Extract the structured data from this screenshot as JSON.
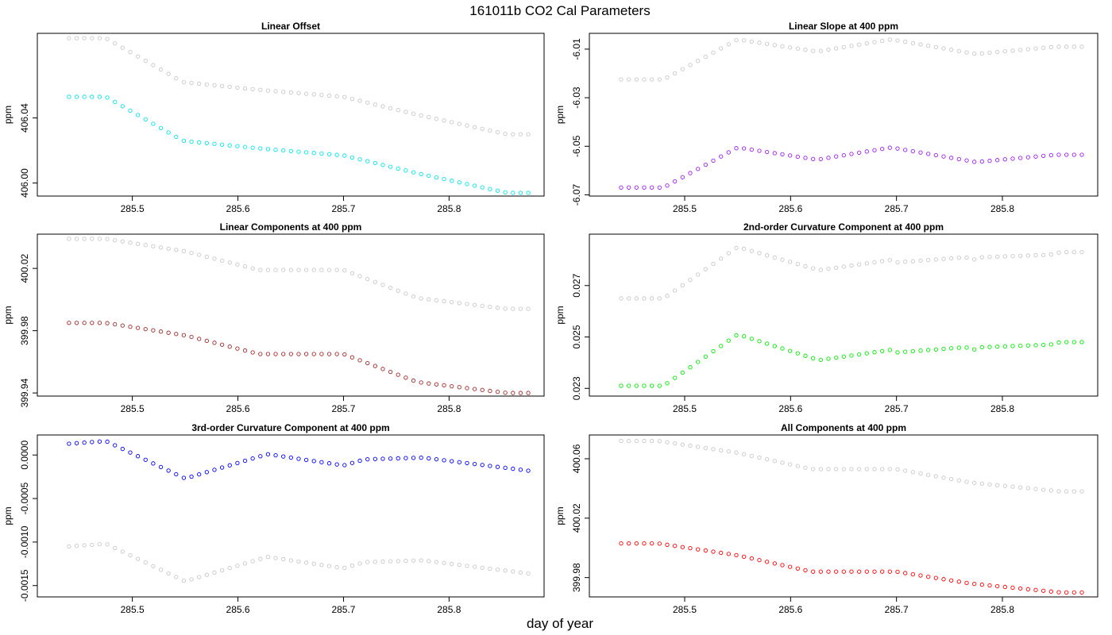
{
  "title": "161011b   CO2 Cal Parameters",
  "xlabel": "day of year",
  "chart_data": [
    {
      "type": "scatter",
      "title": "Linear Offset",
      "ylabel": "ppm",
      "xticks": [
        "285.5",
        "285.6",
        "285.7",
        "285.8"
      ],
      "yticks": [
        "406.00",
        "406.04"
      ],
      "xlim": [
        285.41,
        285.89
      ],
      "ylim": [
        405.992,
        406.092
      ],
      "colors": {
        "series": "#00e5ee",
        "reference": "#c8c8c8"
      },
      "series": [
        {
          "anchors": [
            [
              285.44,
              406.053
            ],
            [
              285.475,
              406.053
            ],
            [
              285.548,
              406.026
            ],
            [
              285.625,
              406.021
            ],
            [
              285.7,
              406.017
            ],
            [
              285.77,
              406.006
            ],
            [
              285.855,
              405.994
            ],
            [
              285.875,
              405.994
            ]
          ]
        },
        {
          "anchors": [
            [
              285.44,
              406.089
            ],
            [
              285.475,
              406.089
            ],
            [
              285.548,
              406.062
            ],
            [
              285.625,
              406.057
            ],
            [
              285.7,
              406.053
            ],
            [
              285.77,
              406.042
            ],
            [
              285.855,
              406.03
            ],
            [
              285.875,
              406.03
            ]
          ]
        }
      ]
    },
    {
      "type": "scatter",
      "title": "Linear Slope at 400 ppm",
      "ylabel": "ppm",
      "xticks": [
        "285.5",
        "285.6",
        "285.7",
        "285.8"
      ],
      "yticks": [
        "-6.07",
        "-6.05",
        "-6.03",
        "-6.01"
      ],
      "xlim": [
        285.41,
        285.89
      ],
      "ylim": [
        -6.0705,
        -6.0035
      ],
      "colors": {
        "series": "#a020f0",
        "reference": "#c8c8c8"
      },
      "series": [
        {
          "anchors": [
            [
              285.44,
              -6.067
            ],
            [
              285.48,
              -6.067
            ],
            [
              285.55,
              -6.0505
            ],
            [
              285.625,
              -6.0555
            ],
            [
              285.695,
              -6.0505
            ],
            [
              285.775,
              -6.0565
            ],
            [
              285.85,
              -6.0535
            ],
            [
              285.875,
              -6.0535
            ]
          ]
        },
        {
          "anchors": [
            [
              285.44,
              -6.0225
            ],
            [
              285.48,
              -6.0225
            ],
            [
              285.55,
              -6.006
            ],
            [
              285.625,
              -6.011
            ],
            [
              285.695,
              -6.006
            ],
            [
              285.775,
              -6.012
            ],
            [
              285.85,
              -6.009
            ],
            [
              285.875,
              -6.009
            ]
          ]
        }
      ]
    },
    {
      "type": "scatter",
      "title": "Linear Components at 400 ppm",
      "ylabel": "ppm",
      "xticks": [
        "285.5",
        "285.6",
        "285.7",
        "285.8"
      ],
      "yticks": [
        "399.94",
        "399.98",
        "400.02"
      ],
      "xlim": [
        285.41,
        285.89
      ],
      "ylim": [
        399.938,
        400.042
      ],
      "colors": {
        "series": "#a52a2a",
        "reference": "#c8c8c8"
      },
      "series": [
        {
          "anchors": [
            [
              285.44,
              399.985
            ],
            [
              285.475,
              399.985
            ],
            [
              285.55,
              399.977
            ],
            [
              285.62,
              399.965
            ],
            [
              285.7,
              399.965
            ],
            [
              285.77,
              399.947
            ],
            [
              285.855,
              399.94
            ],
            [
              285.875,
              399.94
            ]
          ]
        },
        {
          "anchors": [
            [
              285.44,
              400.039
            ],
            [
              285.475,
              400.039
            ],
            [
              285.55,
              400.031
            ],
            [
              285.62,
              400.019
            ],
            [
              285.7,
              400.019
            ],
            [
              285.77,
              400.001
            ],
            [
              285.855,
              399.994
            ],
            [
              285.875,
              399.994
            ]
          ]
        }
      ]
    },
    {
      "type": "scatter",
      "title": "2nd-order Curvature Component at 400 ppm",
      "ylabel": "ppm",
      "xticks": [
        "285.5",
        "285.6",
        "285.7",
        "285.8"
      ],
      "yticks": [
        "0.023",
        "0.025",
        "0.027"
      ],
      "xlim": [
        285.41,
        285.89
      ],
      "ylim": [
        0.0227,
        0.029
      ],
      "colors": {
        "series": "#00ee00",
        "reference": "#c8c8c8"
      },
      "series": [
        {
          "anchors": [
            [
              285.44,
              0.0231
            ],
            [
              285.48,
              0.0231
            ],
            [
              285.55,
              0.0251
            ],
            [
              285.627,
              0.0241
            ],
            [
              285.695,
              0.0245
            ],
            [
              285.7,
              0.0244
            ],
            [
              285.765,
              0.0246
            ],
            [
              285.775,
              0.0245
            ],
            [
              285.78,
              0.0246
            ],
            [
              285.845,
              0.0247
            ],
            [
              285.855,
              0.0248
            ],
            [
              285.875,
              0.0248
            ]
          ]
        },
        {
          "anchors": [
            [
              285.44,
              0.0265
            ],
            [
              285.48,
              0.0265
            ],
            [
              285.55,
              0.0285
            ],
            [
              285.627,
              0.0276
            ],
            [
              285.695,
              0.028
            ],
            [
              285.7,
              0.0279
            ],
            [
              285.765,
              0.0281
            ],
            [
              285.775,
              0.028
            ],
            [
              285.78,
              0.0281
            ],
            [
              285.845,
              0.0282
            ],
            [
              285.855,
              0.0283
            ],
            [
              285.875,
              0.0283
            ]
          ]
        }
      ]
    },
    {
      "type": "scatter",
      "title": "3rd-order Curvature Component at 400 ppm",
      "ylabel": "ppm",
      "xticks": [
        "285.5",
        "285.6",
        "285.7",
        "285.8"
      ],
      "yticks": [
        "-0.0015",
        "-0.0010",
        "-0.0005",
        "0.0000"
      ],
      "xlim": [
        285.41,
        285.89
      ],
      "ylim": [
        -0.00163,
        0.00023
      ],
      "colors": {
        "series": "#0000ff",
        "reference": "#c8c8c8"
      },
      "series": [
        {
          "anchors": [
            [
              285.44,
              0.00013
            ],
            [
              285.475,
              0.00016
            ],
            [
              285.55,
              -0.00027
            ],
            [
              285.628,
              1e-05
            ],
            [
              285.7,
              -0.00012
            ],
            [
              285.72,
              -5e-05
            ],
            [
              285.775,
              -3e-05
            ],
            [
              285.875,
              -0.00018
            ]
          ]
        },
        {
          "anchors": [
            [
              285.44,
              -0.00105
            ],
            [
              285.475,
              -0.00102
            ],
            [
              285.55,
              -0.00145
            ],
            [
              285.628,
              -0.00117
            ],
            [
              285.7,
              -0.0013
            ],
            [
              285.72,
              -0.00123
            ],
            [
              285.775,
              -0.00121
            ],
            [
              285.875,
              -0.00136
            ]
          ]
        }
      ]
    },
    {
      "type": "scatter",
      "title": "All Components at 400 ppm",
      "ylabel": "ppm",
      "xticks": [
        "285.5",
        "285.6",
        "285.7",
        "285.8"
      ],
      "yticks": [
        "399.98",
        "400.02",
        "400.06"
      ],
      "xlim": [
        285.41,
        285.89
      ],
      "ylim": [
        399.967,
        400.076
      ],
      "colors": {
        "series": "#ff0000",
        "reference": "#c8c8c8"
      },
      "series": [
        {
          "anchors": [
            [
              285.44,
              400.003
            ],
            [
              285.475,
              400.003
            ],
            [
              285.55,
              399.995
            ],
            [
              285.62,
              399.984
            ],
            [
              285.7,
              399.984
            ],
            [
              285.77,
              399.976
            ],
            [
              285.855,
              399.97
            ],
            [
              285.875,
              399.97
            ]
          ]
        },
        {
          "anchors": [
            [
              285.44,
              400.072
            ],
            [
              285.475,
              400.072
            ],
            [
              285.55,
              400.064
            ],
            [
              285.62,
              400.053
            ],
            [
              285.7,
              400.053
            ],
            [
              285.77,
              400.044
            ],
            [
              285.855,
              400.038
            ],
            [
              285.875,
              400.038
            ]
          ]
        }
      ]
    }
  ]
}
